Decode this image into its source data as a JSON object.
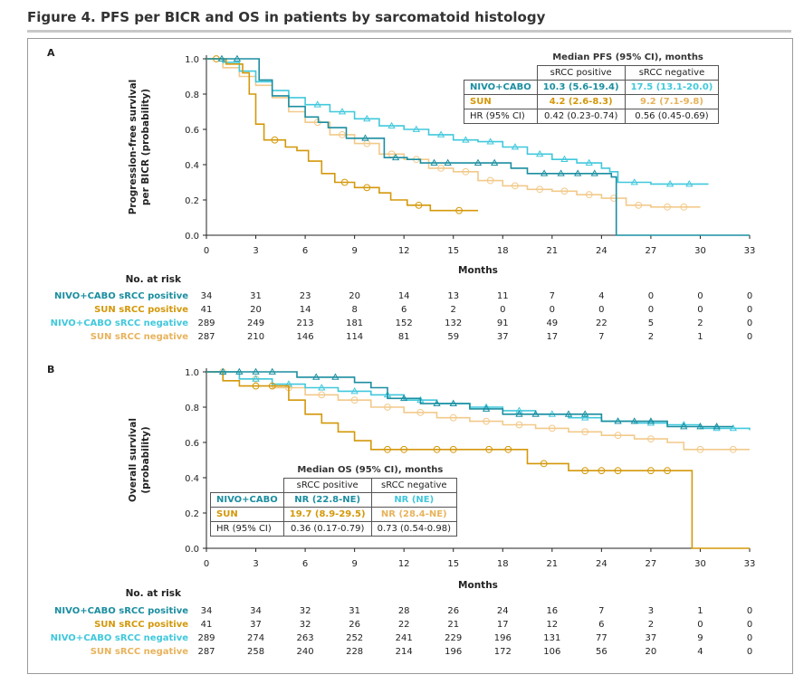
{
  "figure_title": "Figure 4. PFS per BICR and OS in patients by sarcomatoid histology",
  "colors": {
    "nivo_pos": "#1b8ea0",
    "nivo_neg": "#40c8dc",
    "sun_pos": "#d4980a",
    "sun_neg": "#f2c98a",
    "axis": "#222222"
  },
  "chart_data": [
    {
      "panel": "A",
      "type": "line",
      "subtype": "kaplan-meier",
      "ylabel": "Progression-free survival per BICR (probability)",
      "xlabel": "Months",
      "xlim": [
        0,
        33
      ],
      "ylim": [
        0,
        1
      ],
      "xticks": [
        0,
        3,
        6,
        9,
        12,
        15,
        18,
        21,
        24,
        27,
        30,
        33
      ],
      "yticks": [
        "0.0",
        "0.2",
        "0.4",
        "0.6",
        "0.8",
        "1.0"
      ],
      "series": [
        {
          "name": "NIVO+CABO sRCC positive",
          "color_key": "nivo_pos",
          "marker": "triangle",
          "x": [
            0,
            2.8,
            3.2,
            4.0,
            5.0,
            6.0,
            6.8,
            7.4,
            8.5,
            10.8,
            12.2,
            13.0,
            15.5,
            18.5,
            19.5,
            24.6,
            24.9,
            33
          ],
          "y": [
            1.0,
            1.0,
            0.88,
            0.79,
            0.73,
            0.67,
            0.64,
            0.61,
            0.55,
            0.44,
            0.43,
            0.41,
            0.41,
            0.38,
            0.35,
            0.33,
            0.0,
            0.0
          ]
        },
        {
          "name": "SUN sRCC positive",
          "color_key": "sun_pos",
          "marker": "circle",
          "x": [
            0,
            1.2,
            2.2,
            2.6,
            3.0,
            3.5,
            4.8,
            5.5,
            6.2,
            7.0,
            7.8,
            9.0,
            10.5,
            11.2,
            12.2,
            13.6,
            14.2,
            16.5
          ],
          "y": [
            1.0,
            0.97,
            0.92,
            0.8,
            0.63,
            0.54,
            0.5,
            0.48,
            0.42,
            0.35,
            0.3,
            0.27,
            0.24,
            0.2,
            0.17,
            0.14,
            0.14,
            0.14
          ]
        },
        {
          "name": "NIVO+CABO sRCC negative",
          "color_key": "nivo_neg",
          "marker": "triangle",
          "x": [
            0,
            1.0,
            2.0,
            3.0,
            4.0,
            5.0,
            6.0,
            7.5,
            9.0,
            10.5,
            12.0,
            13.5,
            15.0,
            16.5,
            18.0,
            19.5,
            21.0,
            22.5,
            24.0,
            24.5,
            25.0,
            27.0,
            30.5
          ],
          "y": [
            1.0,
            0.98,
            0.93,
            0.87,
            0.82,
            0.78,
            0.74,
            0.7,
            0.66,
            0.62,
            0.6,
            0.57,
            0.54,
            0.53,
            0.5,
            0.46,
            0.43,
            0.41,
            0.38,
            0.36,
            0.3,
            0.29,
            0.29
          ]
        },
        {
          "name": "SUN sRCC negative",
          "color_key": "sun_neg",
          "marker": "circle",
          "x": [
            0,
            1.0,
            2.0,
            3.0,
            4.0,
            5.0,
            6.0,
            7.5,
            9.0,
            10.5,
            12.0,
            13.5,
            15.0,
            16.5,
            18.0,
            19.5,
            21.0,
            22.5,
            24.0,
            25.5,
            27.0,
            30.0
          ],
          "y": [
            1.0,
            0.95,
            0.9,
            0.85,
            0.78,
            0.7,
            0.64,
            0.57,
            0.52,
            0.46,
            0.43,
            0.38,
            0.36,
            0.31,
            0.28,
            0.26,
            0.25,
            0.23,
            0.21,
            0.17,
            0.16,
            0.16
          ]
        }
      ]
    },
    {
      "panel": "B",
      "type": "line",
      "subtype": "kaplan-meier",
      "ylabel": "Overall survival (probability)",
      "xlabel": "Months",
      "xlim": [
        0,
        33
      ],
      "ylim": [
        0,
        1
      ],
      "xticks": [
        0,
        3,
        6,
        9,
        12,
        15,
        18,
        21,
        24,
        27,
        30,
        33
      ],
      "yticks": [
        "0.0",
        "0.2",
        "0.4",
        "0.6",
        "0.8",
        "1.0"
      ],
      "series": [
        {
          "name": "NIVO+CABO sRCC positive",
          "color_key": "nivo_pos",
          "marker": "triangle",
          "x": [
            0,
            5.0,
            5.5,
            9.0,
            10.0,
            11.0,
            13.0,
            16.0,
            18.0,
            21.0,
            24.0,
            28.0,
            32.0
          ],
          "y": [
            1.0,
            1.0,
            0.97,
            0.94,
            0.91,
            0.85,
            0.82,
            0.79,
            0.76,
            0.76,
            0.72,
            0.69,
            0.69
          ]
        },
        {
          "name": "SUN sRCC positive",
          "color_key": "sun_pos",
          "marker": "circle",
          "x": [
            0,
            1.0,
            2.0,
            5.0,
            6.0,
            7.0,
            8.0,
            9.0,
            10.0,
            13.0,
            16.0,
            19.5,
            21.5,
            22.0,
            26.0,
            29.0,
            29.5,
            33
          ],
          "y": [
            1.0,
            0.95,
            0.92,
            0.84,
            0.76,
            0.71,
            0.66,
            0.61,
            0.56,
            0.56,
            0.56,
            0.48,
            0.48,
            0.44,
            0.44,
            0.44,
            0.0,
            0.0
          ]
        },
        {
          "name": "NIVO+CABO sRCC negative",
          "color_key": "nivo_neg",
          "marker": "triangle",
          "x": [
            0,
            2.0,
            4.0,
            6.0,
            8.0,
            10.0,
            12.0,
            14.0,
            16.0,
            18.0,
            20.0,
            22.0,
            24.0,
            26.0,
            28.0,
            30.0,
            33.0
          ],
          "y": [
            1.0,
            0.96,
            0.93,
            0.91,
            0.89,
            0.87,
            0.84,
            0.82,
            0.8,
            0.78,
            0.76,
            0.74,
            0.72,
            0.71,
            0.7,
            0.68,
            0.67
          ]
        },
        {
          "name": "SUN sRCC negative",
          "color_key": "sun_neg",
          "marker": "circle",
          "x": [
            0,
            2.0,
            4.0,
            6.0,
            8.0,
            10.0,
            12.0,
            14.0,
            16.0,
            18.0,
            20.0,
            22.0,
            24.0,
            26.0,
            28.0,
            29.0,
            31.0,
            33.0
          ],
          "y": [
            1.0,
            0.96,
            0.91,
            0.87,
            0.84,
            0.8,
            0.77,
            0.74,
            0.72,
            0.7,
            0.68,
            0.66,
            0.64,
            0.62,
            0.6,
            0.56,
            0.56,
            0.56
          ]
        }
      ]
    }
  ],
  "panel_a": {
    "letter": "A",
    "ylabel_line1": "Progression-free survival",
    "ylabel_line2": "per BICR (probability)",
    "xlabel": "Months",
    "risk_title": "No. at risk",
    "risk_rows": [
      {
        "label": "NIVO+CABO sRCC positive",
        "color_key": "nivo_pos",
        "values": [
          "34",
          "31",
          "23",
          "20",
          "14",
          "13",
          "11",
          "7",
          "4",
          "0",
          "0",
          "0"
        ]
      },
      {
        "label": "SUN sRCC positive",
        "color_key": "sun_pos",
        "values": [
          "41",
          "20",
          "14",
          "8",
          "6",
          "2",
          "0",
          "0",
          "0",
          "0",
          "0",
          "0"
        ]
      },
      {
        "label": "NIVO+CABO sRCC negative",
        "color_key": "nivo_neg",
        "values": [
          "289",
          "249",
          "213",
          "181",
          "152",
          "132",
          "91",
          "49",
          "22",
          "5",
          "2",
          "0"
        ]
      },
      {
        "label": "SUN sRCC negative",
        "color_key": "sun_neg",
        "values": [
          "287",
          "210",
          "146",
          "114",
          "81",
          "59",
          "37",
          "17",
          "7",
          "2",
          "1",
          "0"
        ]
      }
    ],
    "table": {
      "caption": "Median PFS (95% CI), months",
      "col1": "sRCC positive",
      "col2": "sRCC negative",
      "rows": [
        {
          "label": "NIVO+CABO",
          "c1": "10.3 (5.6-19.4)",
          "c2": "17.5 (13.1-20.0)"
        },
        {
          "label": "SUN",
          "c1": "4.2 (2.6-8.3)",
          "c2": "9.2 (7.1-9.8)"
        },
        {
          "label": "HR (95% CI)",
          "c1": "0.42 (0.23-0.74)",
          "c2": "0.56 (0.45-0.69)"
        }
      ]
    }
  },
  "panel_b": {
    "letter": "B",
    "ylabel_line1": "Overall survival",
    "ylabel_line2": "(probability)",
    "xlabel": "Months",
    "risk_title": "No. at risk",
    "risk_rows": [
      {
        "label": "NIVO+CABO sRCC positive",
        "color_key": "nivo_pos",
        "values": [
          "34",
          "34",
          "32",
          "31",
          "28",
          "26",
          "24",
          "16",
          "7",
          "3",
          "1",
          "0"
        ]
      },
      {
        "label": "SUN sRCC positive",
        "color_key": "sun_pos",
        "values": [
          "41",
          "37",
          "32",
          "26",
          "22",
          "21",
          "17",
          "12",
          "6",
          "2",
          "0",
          "0"
        ]
      },
      {
        "label": "NIVO+CABO sRCC negative",
        "color_key": "nivo_neg",
        "values": [
          "289",
          "274",
          "263",
          "252",
          "241",
          "229",
          "196",
          "131",
          "77",
          "37",
          "9",
          "0"
        ]
      },
      {
        "label": "SUN sRCC negative",
        "color_key": "sun_neg",
        "values": [
          "287",
          "258",
          "240",
          "228",
          "214",
          "196",
          "172",
          "106",
          "56",
          "20",
          "4",
          "0"
        ]
      }
    ],
    "table": {
      "caption": "Median OS (95% CI), months",
      "col1": "sRCC positive",
      "col2": "sRCC negative",
      "rows": [
        {
          "label": "NIVO+CABO",
          "c1": "NR (22.8-NE)",
          "c2": "NR (NE)"
        },
        {
          "label": "SUN",
          "c1": "19.7 (8.9-29.5)",
          "c2": "NR (28.4-NE)"
        },
        {
          "label": "HR (95% CI)",
          "c1": "0.36 (0.17-0.79)",
          "c2": "0.73 (0.54-0.98)"
        }
      ]
    }
  }
}
